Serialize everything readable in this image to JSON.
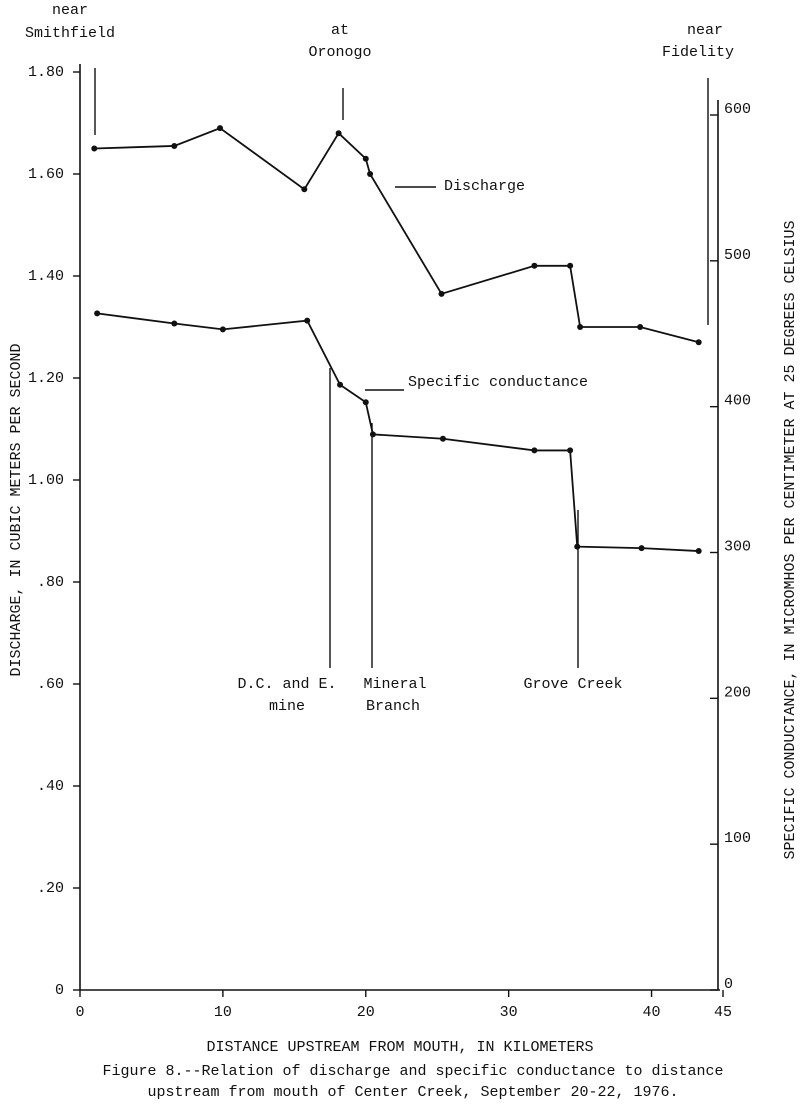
{
  "chart_data": {
    "type": "line",
    "x_label": "DISTANCE UPSTREAM FROM MOUTH, IN KILOMETERS",
    "y_label": "DISCHARGE, IN CUBIC METERS PER SECOND",
    "y2_label": "SPECIFIC CONDUCTANCE, IN MICROMHOS PER CENTIMETER AT 25 DEGREES CELSIUS",
    "caption": [
      "Figure 8.--Relation of discharge and specific conductance to distance",
      "upstream from mouth of Center Creek, September 20-22, 1976."
    ],
    "xlim": [
      0,
      45
    ],
    "xticks": [
      0,
      10,
      20,
      30,
      40,
      45
    ],
    "ylim": [
      0,
      1.8
    ],
    "yticks": [
      0,
      {
        "value": 0.2,
        "label": ".20"
      },
      {
        "value": 0.4,
        "label": ".40"
      },
      {
        "value": 0.6,
        "label": ".60"
      },
      {
        "value": 0.8,
        "label": ".80"
      },
      {
        "value": 1.0,
        "label": "1.00"
      },
      {
        "value": 1.2,
        "label": "1.20"
      },
      {
        "value": 1.4,
        "label": "1.40"
      },
      {
        "value": 1.6,
        "label": "1.60"
      },
      {
        "value": 1.8,
        "label": "1.80"
      }
    ],
    "y2lim": [
      0,
      600
    ],
    "y2ticks": [
      0,
      100,
      200,
      300,
      400,
      500,
      600
    ],
    "series": [
      {
        "name": "Discharge",
        "color": "#111111",
        "x": [
          1.0,
          6.6,
          9.8,
          15.7,
          18.1,
          20.0,
          20.3,
          25.3,
          31.8,
          34.3,
          35.0,
          39.2,
          43.3
        ],
        "values": [
          1.65,
          1.655,
          1.69,
          1.57,
          1.68,
          1.63,
          1.6,
          1.365,
          1.42,
          1.42,
          1.3,
          1.3,
          1.27
        ]
      },
      {
        "name": "Specific conductance",
        "color": "#111111",
        "axis": "y2",
        "x": [
          1.2,
          6.6,
          10.0,
          15.9,
          18.2,
          20.0,
          20.5,
          25.4,
          31.8,
          34.3,
          34.8,
          39.3,
          43.3
        ],
        "values": [
          464,
          457,
          453,
          459,
          415,
          403,
          381,
          378,
          370,
          370,
          304,
          303,
          301
        ]
      }
    ],
    "annotations": [
      {
        "lines": [
          "near",
          "Smithfield"
        ]
      },
      {
        "lines": [
          "at",
          "Oronogo"
        ]
      },
      {
        "lines": [
          "near",
          "Fidelity"
        ]
      },
      {
        "lines": [
          "D.C. and E.",
          "mine"
        ]
      },
      {
        "lines": [
          "Mineral",
          "Branch"
        ]
      },
      {
        "lines": [
          "Grove Creek"
        ]
      }
    ]
  }
}
